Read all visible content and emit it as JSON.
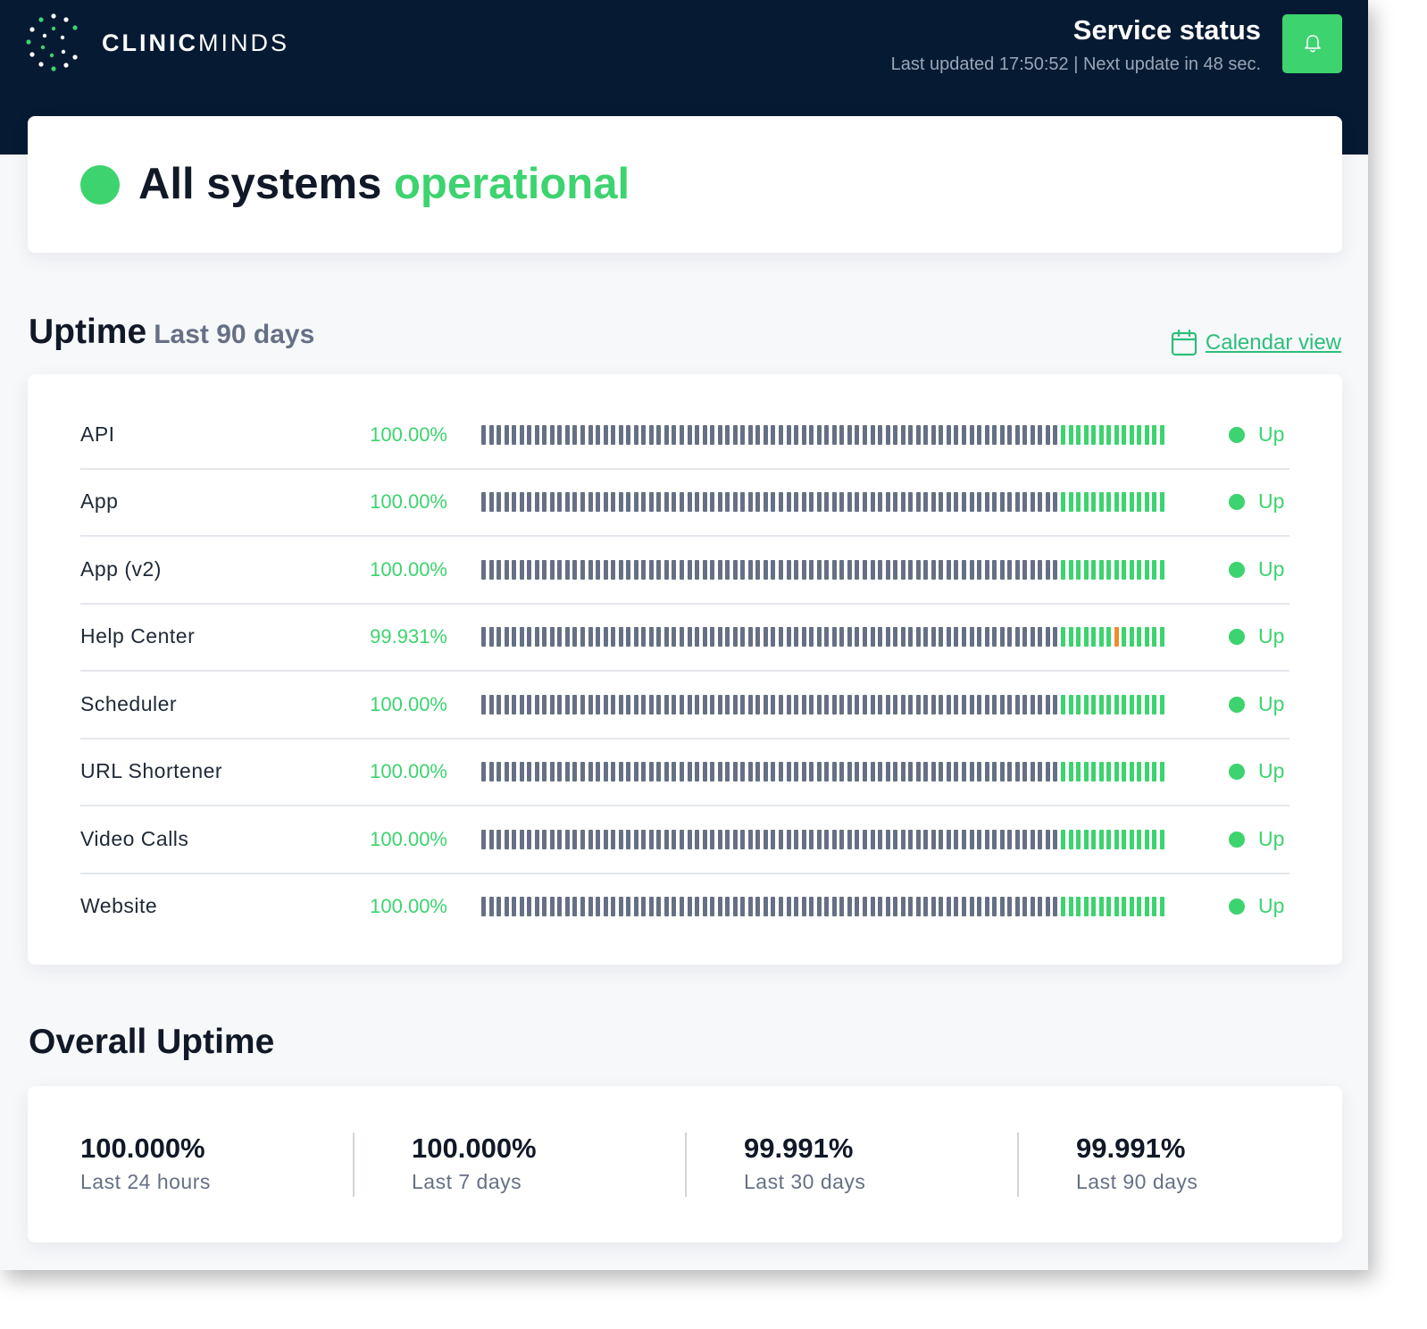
{
  "header": {
    "brand_bold": "CLINIC",
    "brand_light": "MINDS",
    "title": "Service status",
    "updated": "Last updated 17:50:52 | Next update in 48 sec.",
    "bell_icon": "bell-icon"
  },
  "status": {
    "lead": "All systems",
    "state": "operational"
  },
  "uptime": {
    "title": "Uptime",
    "subtitle": "Last 90 days",
    "calendar_link": "Calendar view",
    "rows": [
      {
        "name": "API",
        "percent": "100.00%",
        "status": "Up"
      },
      {
        "name": "App",
        "percent": "100.00%",
        "status": "Up"
      },
      {
        "name": "App (v2)",
        "percent": "100.00%",
        "status": "Up"
      },
      {
        "name": "Help Center",
        "percent": "99.931%",
        "status": "Up"
      },
      {
        "name": "Scheduler",
        "percent": "100.00%",
        "status": "Up"
      },
      {
        "name": "URL Shortener",
        "percent": "100.00%",
        "status": "Up"
      },
      {
        "name": "Video Calls",
        "percent": "100.00%",
        "status": "Up"
      },
      {
        "name": "Website",
        "percent": "100.00%",
        "status": "Up"
      }
    ],
    "bar_counts": {
      "no_data_days": 76,
      "tracked_days": 14
    },
    "incident_day": {
      "row": 3,
      "tracked_day_index": 7
    },
    "colors": {
      "no_data": "#667085",
      "up": "#3dd36f",
      "incident": "#f08c2e"
    }
  },
  "overall": {
    "title": "Overall Uptime",
    "stats": [
      {
        "value": "100.000%",
        "label": "Last 24 hours"
      },
      {
        "value": "100.000%",
        "label": "Last 7 days"
      },
      {
        "value": "99.991%",
        "label": "Last 30 days"
      },
      {
        "value": "99.991%",
        "label": "Last 90 days"
      }
    ]
  },
  "colors": {
    "header_bg": "#071a33",
    "accent_green": "#3dd36f",
    "link_green": "#2bbf7a"
  }
}
